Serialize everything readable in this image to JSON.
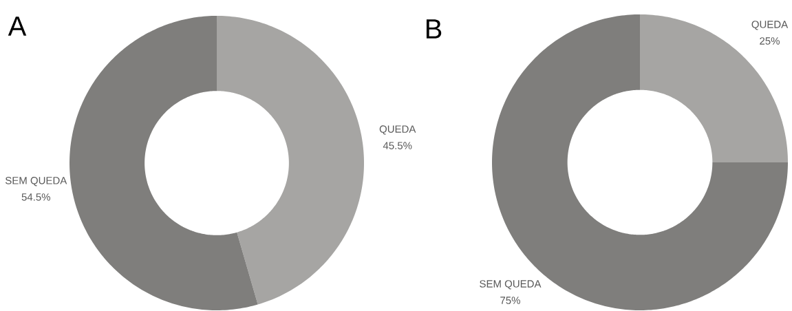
{
  "chart_data": [
    {
      "type": "donut",
      "title": "A",
      "categories": [
        "QUEDA",
        "SEM QUEDA"
      ],
      "values": [
        45.5,
        54.5
      ],
      "colors": [
        "#a6a5a3",
        "#7f7e7c"
      ],
      "value_labels": [
        "45.5%",
        "54.5%"
      ]
    },
    {
      "type": "donut",
      "title": "B",
      "categories": [
        "QUEDA",
        "SEM QUEDA"
      ],
      "values": [
        25,
        75
      ],
      "colors": [
        "#a6a5a3",
        "#7f7e7c"
      ],
      "value_labels": [
        "25%",
        "75%"
      ]
    }
  ]
}
